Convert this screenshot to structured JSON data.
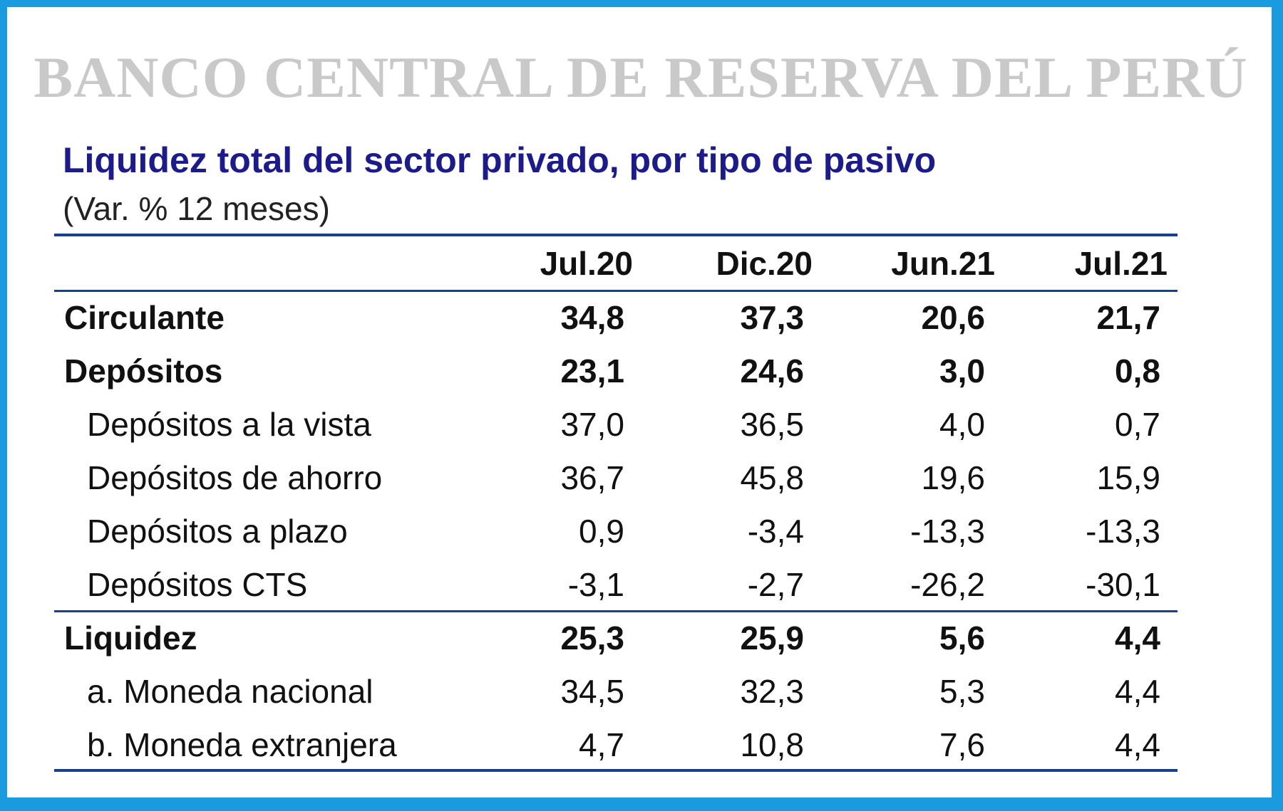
{
  "watermark": "BANCO CENTRAL DE RESERVA DEL PERÚ",
  "title": "Liquidez total del sector privado, por tipo de pasivo",
  "subtitle": "(Var. % 12 meses)",
  "table": {
    "columns": [
      "Jul.20",
      "Dic.20",
      "Jun.21",
      "Jul.21"
    ],
    "rows": [
      {
        "label": "Circulante",
        "values": [
          "34,8",
          "37,3",
          "20,6",
          "21,7"
        ]
      },
      {
        "label": "Depósitos",
        "values": [
          "23,1",
          "24,6",
          "3,0",
          "0,8"
        ]
      },
      {
        "label": "Depósitos a la vista",
        "values": [
          "37,0",
          "36,5",
          "4,0",
          "0,7"
        ]
      },
      {
        "label": "Depósitos de ahorro",
        "values": [
          "36,7",
          "45,8",
          "19,6",
          "15,9"
        ]
      },
      {
        "label": "Depósitos a plazo",
        "values": [
          "0,9",
          "-3,4",
          "-13,3",
          "-13,3"
        ]
      },
      {
        "label": "Depósitos CTS",
        "values": [
          "-3,1",
          "-2,7",
          "-26,2",
          "-30,1"
        ]
      },
      {
        "label": "Liquidez",
        "values": [
          "25,3",
          "25,9",
          "5,6",
          "4,4"
        ]
      },
      {
        "label": "a. Moneda nacional",
        "values": [
          "34,5",
          "32,3",
          "5,3",
          "4,4"
        ]
      },
      {
        "label": "b. Moneda extranjera",
        "values": [
          "4,7",
          "10,8",
          "7,6",
          "4,4"
        ]
      }
    ]
  },
  "colors": {
    "frame_border": "#1a9be0",
    "title": "#1b1b8e",
    "rules": "#1b3f8e",
    "watermark": "#c9c9c9"
  }
}
